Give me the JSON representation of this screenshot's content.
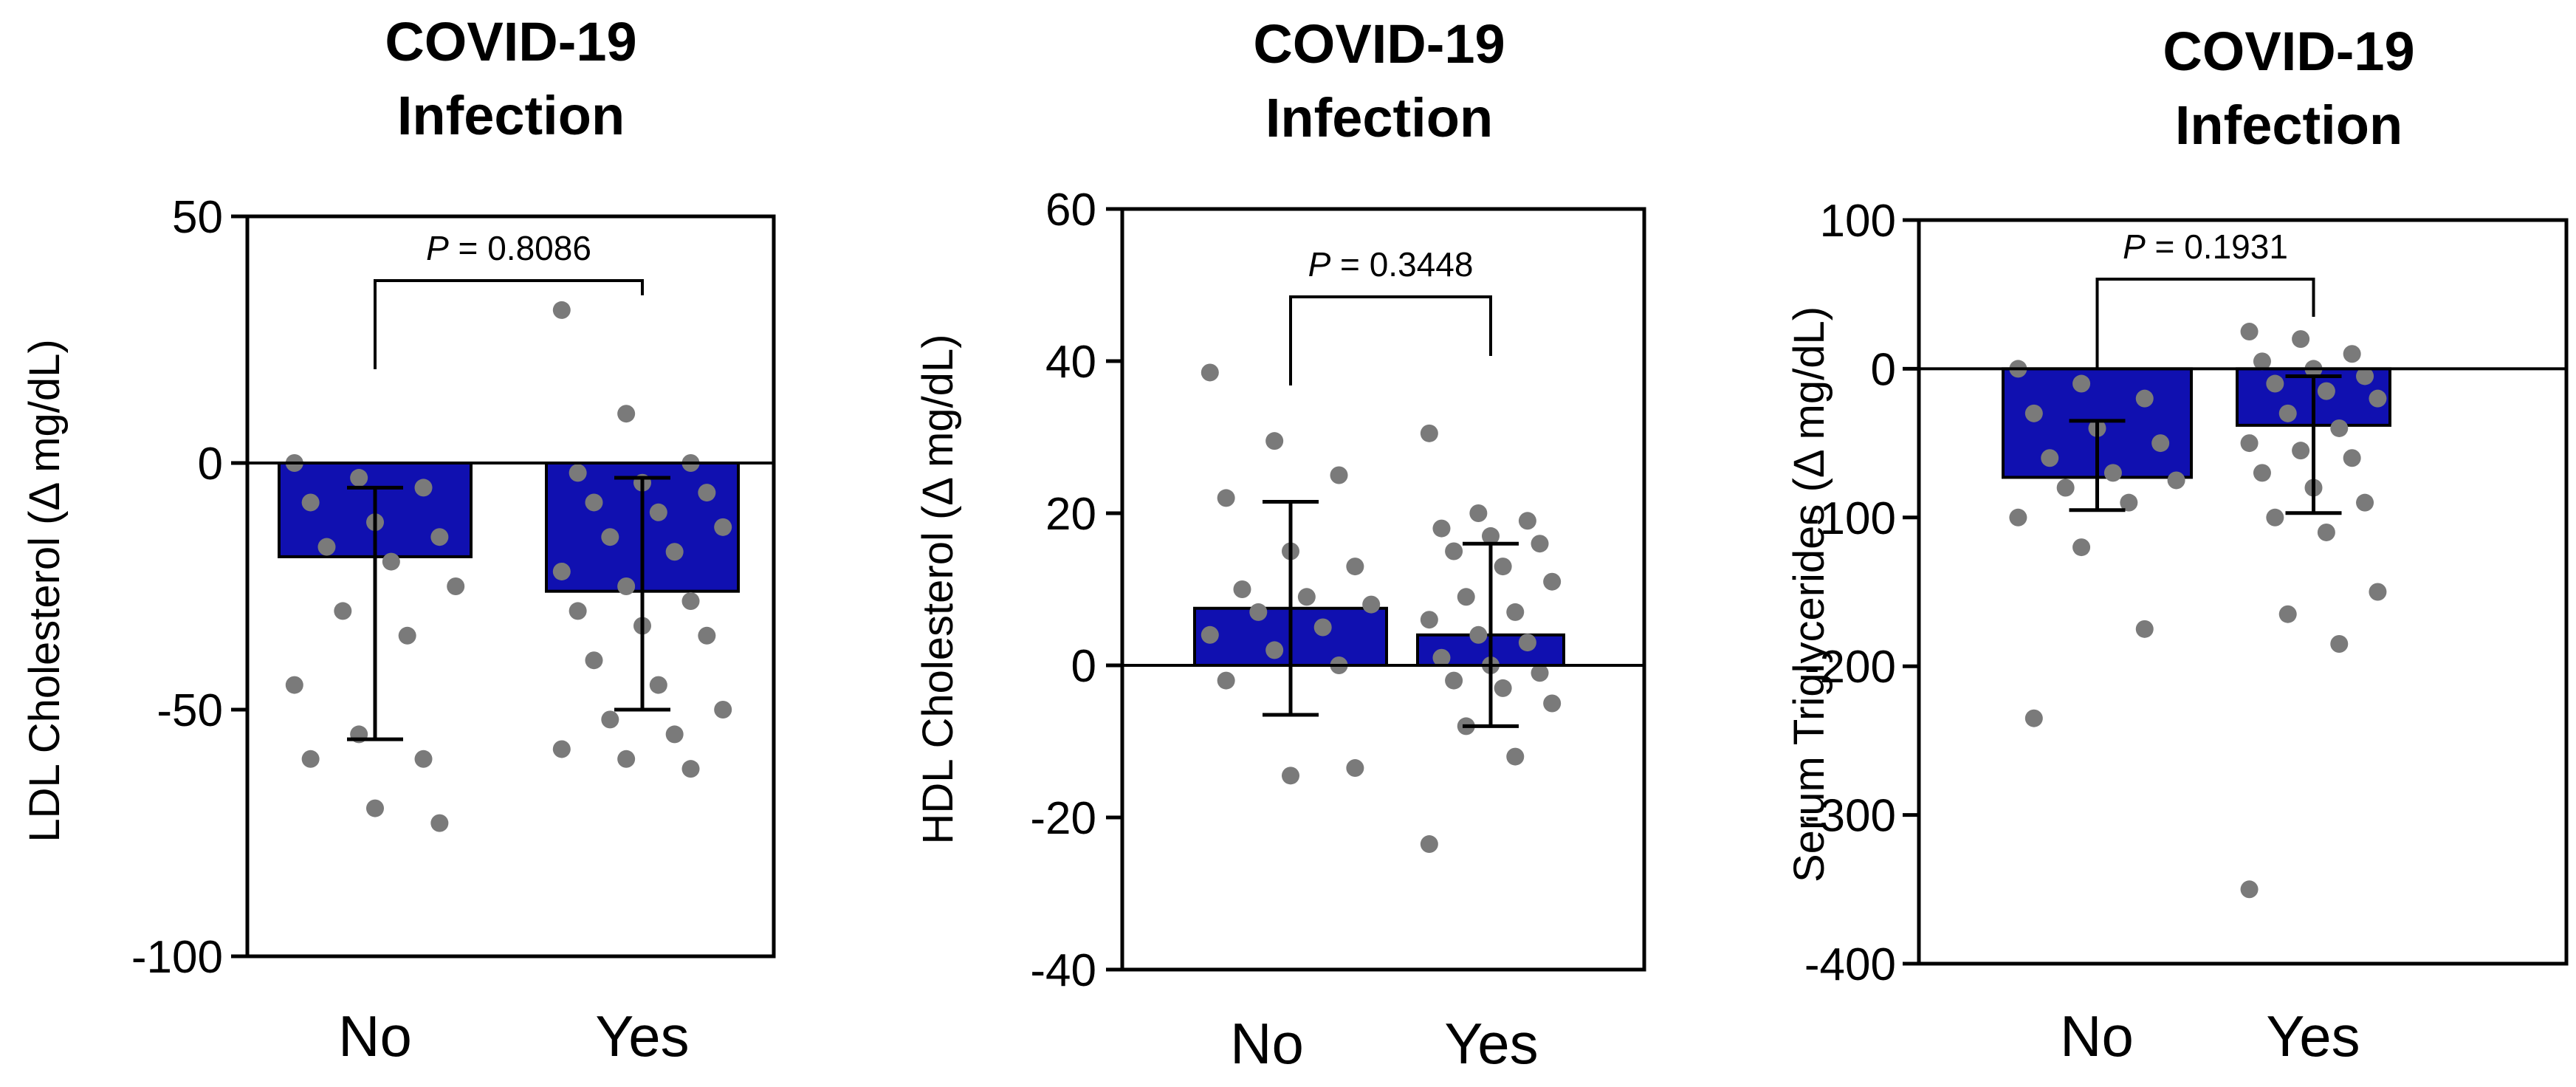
{
  "colors": {
    "bar": "#1010b0",
    "bar_edge": "#000000",
    "dot": "#7a7a7a",
    "axis": "#000000"
  },
  "chart_data": [
    {
      "type": "bar",
      "title": [
        "COVID-19",
        "Infection"
      ],
      "ylabel": "LDL Cholesterol (Δ mg/dL)",
      "xlabel": "",
      "categories": [
        "No",
        "Yes"
      ],
      "ylim": [
        -100,
        50
      ],
      "yticks": [
        50,
        0,
        -50,
        -100
      ],
      "ytick_labels": [
        "50",
        "0",
        "-50",
        "-100"
      ],
      "values": [
        -19,
        -26
      ],
      "error": [
        {
          "upper": -5,
          "lower": -56
        },
        {
          "upper": -3,
          "lower": -50
        }
      ],
      "points": [
        [
          0,
          -3,
          -5,
          -8,
          -12,
          -15,
          -17,
          -20,
          -25,
          -30,
          -35,
          -45,
          -55,
          -60,
          -60,
          -70,
          -73
        ],
        [
          31,
          10,
          0,
          -2,
          -4,
          -6,
          -8,
          -10,
          -13,
          -15,
          -18,
          -22,
          -25,
          -28,
          -30,
          -33,
          -35,
          -40,
          -45,
          -50,
          -52,
          -55,
          -58,
          -60,
          -62
        ]
      ],
      "significance": {
        "p_label": "P",
        "text": " = 0.8086"
      }
    },
    {
      "type": "bar",
      "title": [
        "COVID-19",
        "Infection"
      ],
      "ylabel": "HDL Cholesterol (Δ mg/dL)",
      "xlabel": "",
      "categories": [
        "No",
        "Yes"
      ],
      "ylim": [
        -40,
        60
      ],
      "yticks": [
        60,
        40,
        20,
        0,
        -20,
        -40
      ],
      "ytick_labels": [
        "60",
        "40",
        "20",
        "0",
        "-20",
        "-40"
      ],
      "values": [
        7.5,
        4
      ],
      "error": [
        {
          "upper": 21.5,
          "lower": -6.5
        },
        {
          "upper": 16,
          "lower": -8
        }
      ],
      "points": [
        [
          38.5,
          29.5,
          25,
          22,
          15,
          13,
          10,
          9,
          8,
          7,
          5,
          4,
          2,
          0,
          -2,
          -14.5,
          -13.5
        ],
        [
          30.5,
          20,
          19,
          18,
          17,
          16,
          15,
          13,
          11,
          9,
          7,
          6,
          4,
          3,
          1,
          0,
          -1,
          -2,
          -3,
          -5,
          -8,
          -12,
          -23.5
        ]
      ],
      "significance": {
        "p_label": "P",
        "text": " = 0.3448"
      }
    },
    {
      "type": "bar",
      "title": [
        "COVID-19",
        "Infection"
      ],
      "ylabel": "Serum Triglycerides (Δ mg/dL)",
      "xlabel": "",
      "categories": [
        "No",
        "Yes"
      ],
      "ylim": [
        -400,
        100
      ],
      "yticks": [
        100,
        0,
        -100,
        -200,
        -300,
        -400
      ],
      "ytick_labels": [
        "100",
        "0",
        "-100",
        "-200",
        "-300",
        "-400"
      ],
      "values": [
        -73,
        -38
      ],
      "error": [
        {
          "upper": -35,
          "lower": -95
        },
        {
          "upper": -5,
          "lower": -97
        }
      ],
      "points": [
        [
          0,
          -10,
          -20,
          -30,
          -40,
          -50,
          -60,
          -70,
          -75,
          -80,
          -90,
          -100,
          -120,
          -175,
          -235
        ],
        [
          25,
          20,
          10,
          5,
          0,
          -5,
          -10,
          -15,
          -20,
          -30,
          -40,
          -50,
          -55,
          -60,
          -70,
          -80,
          -90,
          -100,
          -110,
          -150,
          -165,
          -185,
          -350
        ]
      ],
      "significance": {
        "p_label": "P",
        "text": " = 0.1931"
      }
    }
  ]
}
